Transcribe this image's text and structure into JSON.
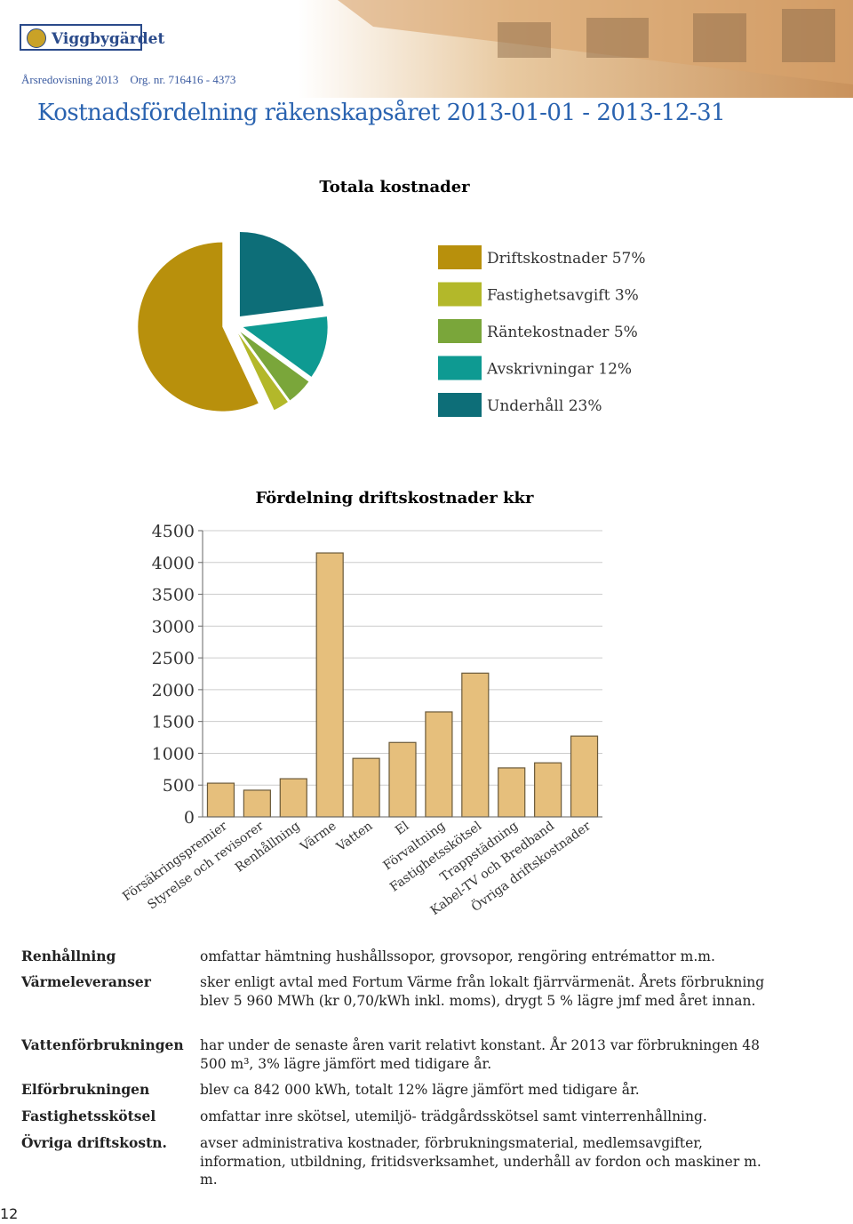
{
  "header": {
    "logo": "Viggbygärdet",
    "subtitle": "Årsredovisning 2013    Org. nr. 716416 - 4373"
  },
  "title": "Kostnadsfördelning räkenskapsåret 2013-01-01 - 2013-12-31",
  "chart_data": [
    {
      "type": "pie",
      "title": "Totala kostnader",
      "categories": [
        "Driftskostnader",
        "Fastighetsavgift",
        "Räntekostnader",
        "Avskrivningar",
        "Underhåll"
      ],
      "values": [
        57,
        3,
        5,
        12,
        23
      ],
      "value_labels": [
        "57%",
        "3%",
        "5%",
        "12%",
        "23%"
      ],
      "colors": [
        "#b8900c",
        "#b3b82a",
        "#7aa63a",
        "#0e9a92",
        "#0d6e78"
      ]
    },
    {
      "type": "bar",
      "title": "Fördelning driftskostnader kkr",
      "categories": [
        "Försäkringspremier",
        "Styrelse och revisorer",
        "Renhållning",
        "Värme",
        "Vatten",
        "El",
        "Förvaltning",
        "Fastighetsskötsel",
        "Trappstädning",
        "Kabel-TV och Bredband",
        "Övriga driftskostnader"
      ],
      "values": [
        530,
        420,
        600,
        4150,
        920,
        1170,
        1650,
        2260,
        770,
        850,
        1270
      ],
      "color": "#e6bf7c",
      "ylim": [
        0,
        4500
      ],
      "yticks": [
        0,
        500,
        1000,
        1500,
        2000,
        2500,
        3000,
        3500,
        4000,
        4500
      ],
      "grid": true
    }
  ],
  "definitions": [
    {
      "term": "Renhållning",
      "text": "omfattar hämtning hushållssopor, grovsopor, rengöring entrémattor m.m."
    },
    {
      "term": "Värmeleveranser",
      "text": "sker enligt avtal med Fortum Värme från lokalt fjärrvärmenät. Årets förbrukning blev 5 960 MWh (kr 0,70/kWh inkl. moms), drygt 5 % lägre jmf med året innan."
    },
    {
      "term": "Vattenförbrukningen",
      "text": "har under de senaste åren varit relativt konstant. År 2013 var förbrukningen 48 500 m³, 3% lägre jämfört med tidigare år."
    },
    {
      "term": "Elförbrukningen",
      "text": "blev ca 842 000 kWh, totalt 12% lägre jämfört med tidigare år."
    },
    {
      "term": "Fastighetsskötsel",
      "text": "omfattar inre skötsel, utemiljö- trädgårdsskötsel samt vinterrenhållning."
    },
    {
      "term": "Övriga driftskostn.",
      "text": "avser administrativa kostnader, förbrukningsmaterial, medlemsavgifter, information, utbildning, fritidsverksamhet, underhåll av fordon och maskiner m. m."
    }
  ],
  "page_number": "12"
}
